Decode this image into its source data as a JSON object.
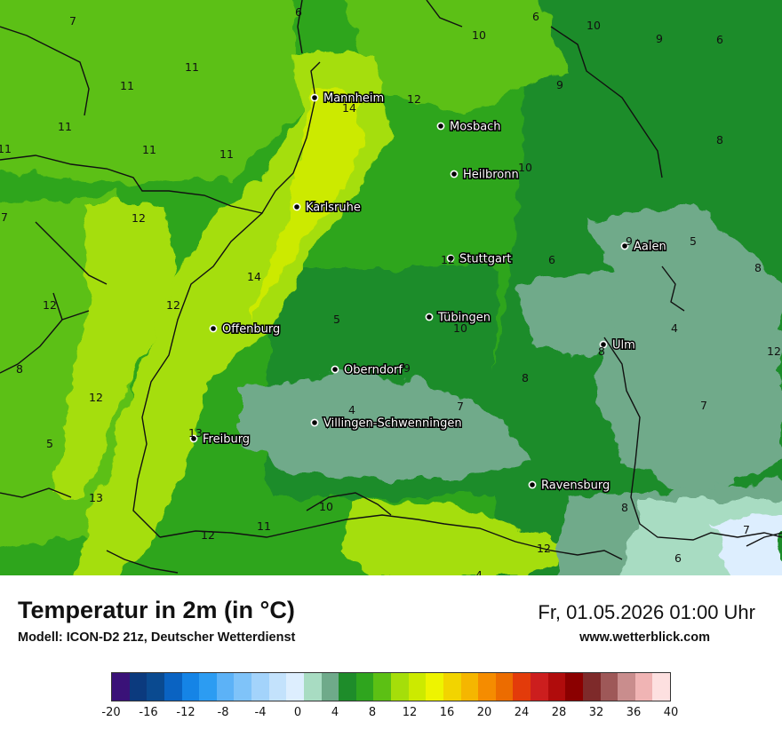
{
  "title": "Temperatur in 2m (in °C)",
  "subtitle": "Modell: ICON-D2 21z, Deutscher Wetterdienst",
  "datetime": "Fr, 01.05.2026 01:00 Uhr",
  "website": "www.wetterblick.com",
  "legend": {
    "ticks": [
      "-20",
      "-16",
      "-12",
      "-8",
      "-4",
      "0",
      "4",
      "8",
      "12",
      "16",
      "20",
      "24",
      "28",
      "32",
      "36",
      "40"
    ],
    "colors": [
      "#3a1278",
      "#0b3a7e",
      "#0a4a90",
      "#0a63c2",
      "#1584e6",
      "#2c9cf2",
      "#5cb2f7",
      "#7fc3f9",
      "#a3d3fb",
      "#c3e2fc",
      "#ddeefe",
      "#a8dcc2",
      "#6faa8a",
      "#1e8c2a",
      "#2fa51e",
      "#5cc014",
      "#a5de0a",
      "#ccea00",
      "#eef400",
      "#f2d400",
      "#f5b600",
      "#f58c00",
      "#ec6c00",
      "#e33b0a",
      "#cc1e1e",
      "#b00c0c",
      "#8b0000",
      "#7e2a2a",
      "#9e5858",
      "#c98d8d",
      "#f0b4b4",
      "#fde0e0"
    ]
  },
  "map": {
    "colors": {
      "green_dark": "#1e8c2a",
      "green": "#2fa51e",
      "green_light": "#5cc014",
      "yellow_green": "#a5de0a",
      "lime": "#ccea00",
      "grey_green": "#6faa8a",
      "mint": "#a8dcc2",
      "border": "#111111"
    },
    "cities": [
      {
        "name": "Mannheim"
      },
      {
        "name": "Mosbach"
      },
      {
        "name": "Heilbronn"
      },
      {
        "name": "Karlsruhe"
      },
      {
        "name": "Aalen"
      },
      {
        "name": "Stuttgart"
      },
      {
        "name": "Tübingen"
      },
      {
        "name": "Offenburg"
      },
      {
        "name": "Ulm"
      },
      {
        "name": "Oberndorf"
      },
      {
        "name": "Villingen-Schwenningen"
      },
      {
        "name": "Freiburg"
      },
      {
        "name": "Ravensburg"
      }
    ],
    "values": [
      "6",
      "6",
      "10",
      "10",
      "9",
      "6",
      "7",
      "11",
      "11",
      "11",
      "9",
      "12",
      "14",
      "8",
      "11",
      "11",
      "10",
      "11",
      "12",
      "7",
      "9",
      "5",
      "12",
      "14",
      "6",
      "8",
      "12",
      "12",
      "5",
      "10",
      "4",
      "8",
      "12",
      "9",
      "8",
      "8",
      "12",
      "4",
      "7",
      "7",
      "13",
      "5",
      "10",
      "13",
      "12",
      "11",
      "8",
      "12",
      "7",
      "6",
      "4"
    ]
  }
}
